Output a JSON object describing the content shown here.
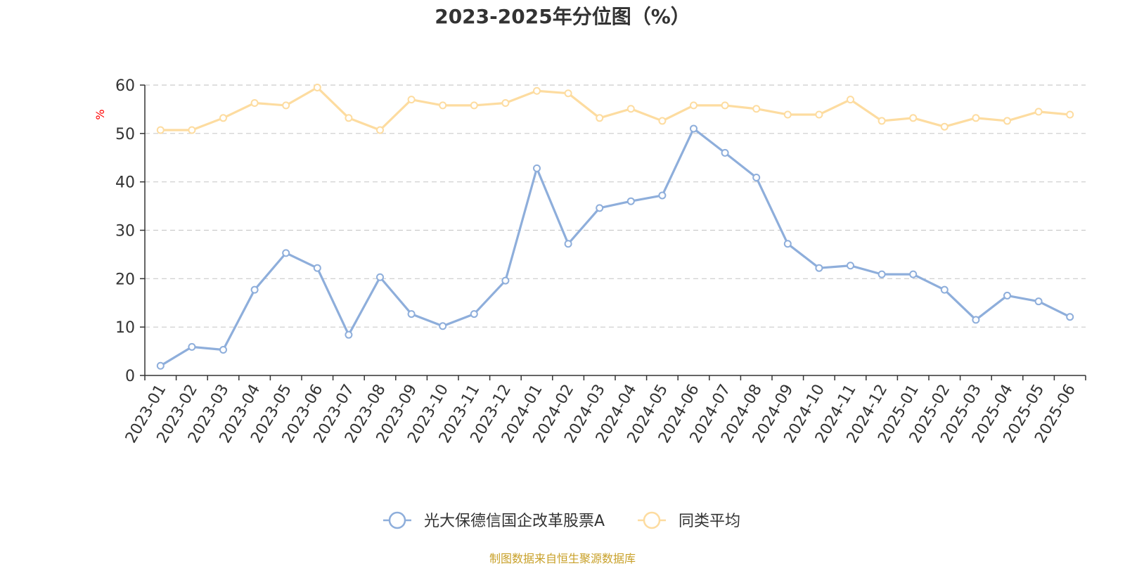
{
  "colors": {
    "series_1": "#8eaedb",
    "series_2": "#fddca0",
    "grid": "#cccccc",
    "axis": "#333333",
    "unit": "#ff0000",
    "source": "#c8a028"
  },
  "chart_data": {
    "type": "line",
    "title": "2023-2025年分位图（%）",
    "ylabel": "%",
    "ylim": [
      0,
      60
    ],
    "yticks": [
      0,
      10,
      20,
      30,
      40,
      50,
      60
    ],
    "grid": true,
    "legend_position": "bottom-center",
    "categories": [
      "2023-01",
      "2023-02",
      "2023-03",
      "2023-04",
      "2023-05",
      "2023-06",
      "2023-07",
      "2023-08",
      "2023-09",
      "2023-10",
      "2023-11",
      "2023-12",
      "2024-01",
      "2024-02",
      "2024-03",
      "2024-04",
      "2024-05",
      "2024-06",
      "2024-07",
      "2024-08",
      "2024-09",
      "2024-10",
      "2024-11",
      "2024-12",
      "2025-01",
      "2025-02",
      "2025-03",
      "2025-04",
      "2025-05",
      "2025-06"
    ],
    "series": [
      {
        "name": "光大保德信国企改革股票A",
        "values": [
          2.0,
          5.9,
          5.3,
          17.7,
          25.3,
          22.2,
          8.4,
          20.3,
          12.7,
          10.2,
          12.7,
          19.6,
          42.8,
          27.2,
          34.6,
          36.0,
          37.2,
          51.0,
          46.0,
          40.9,
          27.2,
          22.2,
          22.7,
          20.9,
          20.9,
          17.7,
          11.5,
          16.5,
          15.3,
          12.1
        ]
      },
      {
        "name": "同类平均",
        "values": [
          50.7,
          50.7,
          53.2,
          56.3,
          55.8,
          59.5,
          53.2,
          50.7,
          57.0,
          55.8,
          55.8,
          56.3,
          58.8,
          58.3,
          53.2,
          55.1,
          52.6,
          55.8,
          55.8,
          55.1,
          53.9,
          53.9,
          57.0,
          52.6,
          53.2,
          51.4,
          53.2,
          52.6,
          54.5,
          53.9
        ]
      }
    ]
  },
  "source_note": "制图数据来自恒生聚源数据库"
}
